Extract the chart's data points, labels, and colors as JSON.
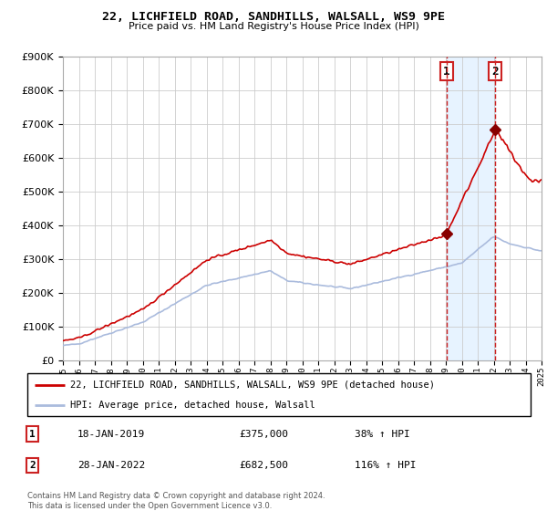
{
  "title": "22, LICHFIELD ROAD, SANDHILLS, WALSALL, WS9 9PE",
  "subtitle": "Price paid vs. HM Land Registry's House Price Index (HPI)",
  "property_label": "22, LICHFIELD ROAD, SANDHILLS, WALSALL, WS9 9PE (detached house)",
  "hpi_label": "HPI: Average price, detached house, Walsall",
  "sale1_date": "18-JAN-2019",
  "sale1_price": 375000,
  "sale1_pct": "38% ↑ HPI",
  "sale2_date": "28-JAN-2022",
  "sale2_price": 682500,
  "sale2_pct": "116% ↑ HPI",
  "footer": "Contains HM Land Registry data © Crown copyright and database right 2024.\nThis data is licensed under the Open Government Licence v3.0.",
  "property_color": "#cc0000",
  "hpi_color": "#aabbdd",
  "shade_color": "#ddeeff",
  "marker_color": "#880000",
  "vline_color": "#cc2222",
  "ylim": [
    0,
    900000
  ],
  "sale1_x": 2019.04,
  "sale2_x": 2022.07,
  "xmin": 1995,
  "xmax": 2025
}
